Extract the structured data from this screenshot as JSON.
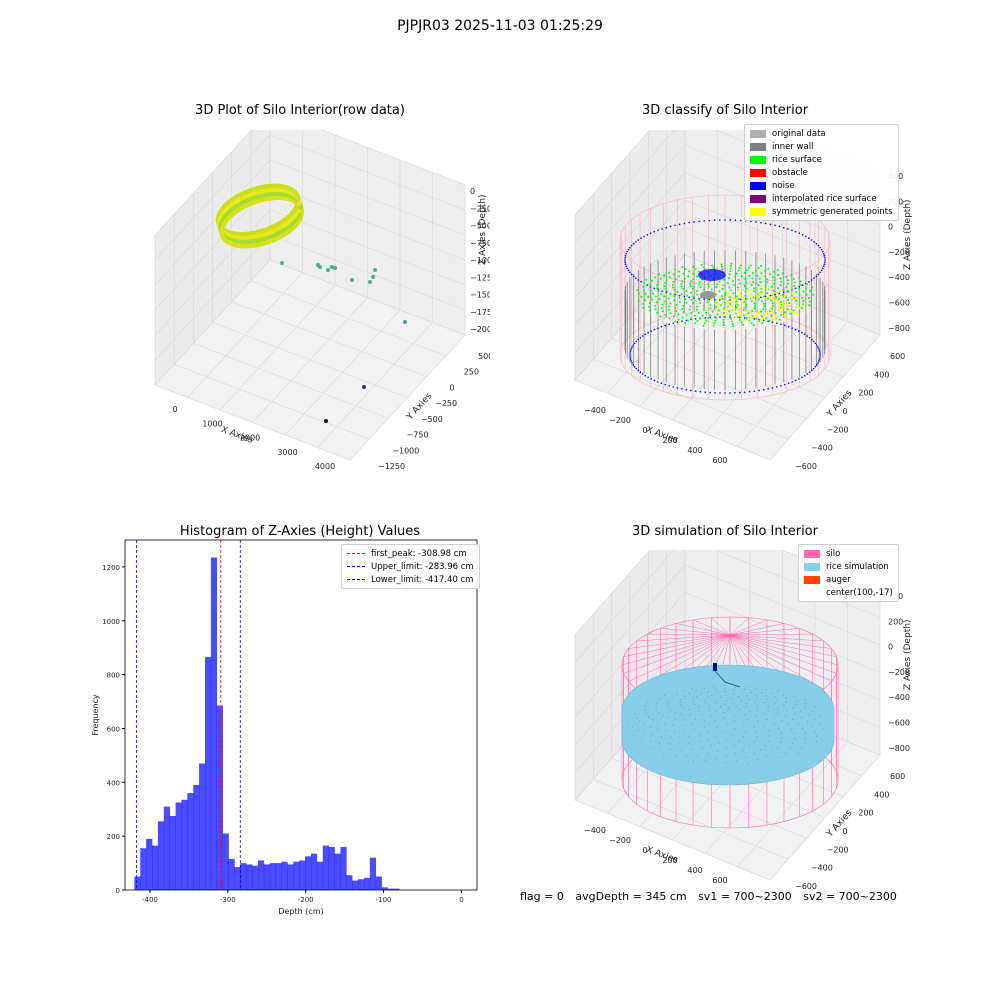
{
  "suptitle": "PJPJR03 2025-11-03 01:25:29",
  "chart_data": [
    {
      "type": "scatter3d",
      "title": "3D Plot of Silo Interior(row data)",
      "xlabel": "X Axies",
      "ylabel": "Y Axies",
      "zlabel": "Z Axies (Depth)",
      "xticks": [
        "0",
        "1000",
        "2000",
        "3000",
        "4000"
      ],
      "yticks": [
        "500",
        "250",
        "0",
        "−250",
        "−500",
        "−750",
        "−1000",
        "−1250"
      ],
      "zticks": [
        "0",
        "−250",
        "−500",
        "−750",
        "−1000",
        "−1250",
        "−1500",
        "−1750",
        "−2000"
      ],
      "xlim": [
        -300,
        4400
      ],
      "ylim": [
        -1300,
        700
      ],
      "zlim": [
        -2100,
        100
      ],
      "outliers": [
        {
          "x": 2600,
          "y": 500,
          "z": -900
        },
        {
          "x": 2700,
          "y": 480,
          "z": -1000
        },
        {
          "x": 3000,
          "y": 450,
          "z": -950
        },
        {
          "x": 3100,
          "y": 430,
          "z": -1000
        },
        {
          "x": 3300,
          "y": 420,
          "z": -1050
        },
        {
          "x": 3500,
          "y": 400,
          "z": -1100
        },
        {
          "x": 3700,
          "y": 300,
          "z": -1600
        },
        {
          "x": 3500,
          "y": -300,
          "z": -2000
        },
        {
          "x": 3700,
          "y": -600,
          "z": -2000
        }
      ]
    },
    {
      "type": "scatter3d",
      "title": "3D classify of Silo Interior",
      "xlabel": "X Axies",
      "ylabel": "Y Axies",
      "zlabel": "Z Axies (Depth)",
      "xticks": [
        "−400",
        "−200",
        "0",
        "200",
        "400",
        "600"
      ],
      "yticks": [
        "600",
        "400",
        "200",
        "0",
        "−200",
        "−400",
        "−600"
      ],
      "zticks": [
        "400",
        "200",
        "0",
        "−200",
        "−400",
        "−600",
        "−800"
      ],
      "legend": [
        {
          "label": "original data",
          "color": "#b0b0b0"
        },
        {
          "label": "inner wall",
          "color": "#808080"
        },
        {
          "label": "rice surface",
          "color": "#00ff00"
        },
        {
          "label": "obstacle",
          "color": "#ff0000"
        },
        {
          "label": "noise",
          "color": "#0000ff"
        },
        {
          "label": "interpolated rice surface",
          "color": "#800080"
        },
        {
          "label": "symmetric generated points",
          "color": "#ffff00"
        }
      ]
    },
    {
      "type": "bar",
      "title": "Histogram of Z-Axies (Height) Values",
      "xlabel": "Depth (cm)",
      "ylabel": "Frequency",
      "xlim": [
        -432,
        20
      ],
      "ylim": [
        0,
        1300
      ],
      "xticks": [
        -400,
        -300,
        -200,
        -100,
        0
      ],
      "yticks": [
        0,
        200,
        400,
        600,
        800,
        1000,
        1200
      ],
      "bin_start": -420,
      "bin_width": 7.56,
      "values": [
        50,
        155,
        190,
        165,
        255,
        310,
        275,
        325,
        335,
        360,
        390,
        470,
        865,
        1235,
        685,
        210,
        115,
        85,
        100,
        95,
        90,
        110,
        95,
        100,
        100,
        105,
        95,
        105,
        110,
        125,
        135,
        105,
        165,
        160,
        135,
        160,
        55,
        35,
        40,
        45,
        120,
        50,
        10,
        5,
        5
      ],
      "color": "#0000ff",
      "lines": [
        {
          "label": "first_peak: -308.98 cm",
          "x": -308.98,
          "color": "#ff0000"
        },
        {
          "label": "Upper_limit: -283.96 cm",
          "x": -283.96,
          "color": "#0000cc"
        },
        {
          "label": "Lower_limit: -417.40 cm",
          "x": -417.4,
          "color": "#0000cc"
        }
      ]
    },
    {
      "type": "surface3d",
      "title": "3D simulation of Silo Interior",
      "xlabel": "X Axies",
      "ylabel": "Y Axies",
      "zlabel": "Z Axies (Depth)",
      "xticks": [
        "−400",
        "−200",
        "0",
        "200",
        "400",
        "600"
      ],
      "yticks": [
        "600",
        "400",
        "200",
        "0",
        "−200",
        "−400",
        "−600"
      ],
      "zticks": [
        "400",
        "200",
        "0",
        "−200",
        "−400",
        "−600",
        "−800"
      ],
      "legend": [
        {
          "label": "silo",
          "color": "#ff69b4"
        },
        {
          "label": "rice simulation",
          "color": "#87ceeb"
        },
        {
          "label": "auger",
          "color": "#ff4500"
        },
        {
          "label": "center(100,-17)",
          "color": ""
        }
      ]
    }
  ],
  "status": {
    "flag": "flag = 0",
    "avg": "avgDepth = 345 cm",
    "sv1": "sv1 = 700~2300",
    "sv2": "sv2 = 700~2300"
  }
}
